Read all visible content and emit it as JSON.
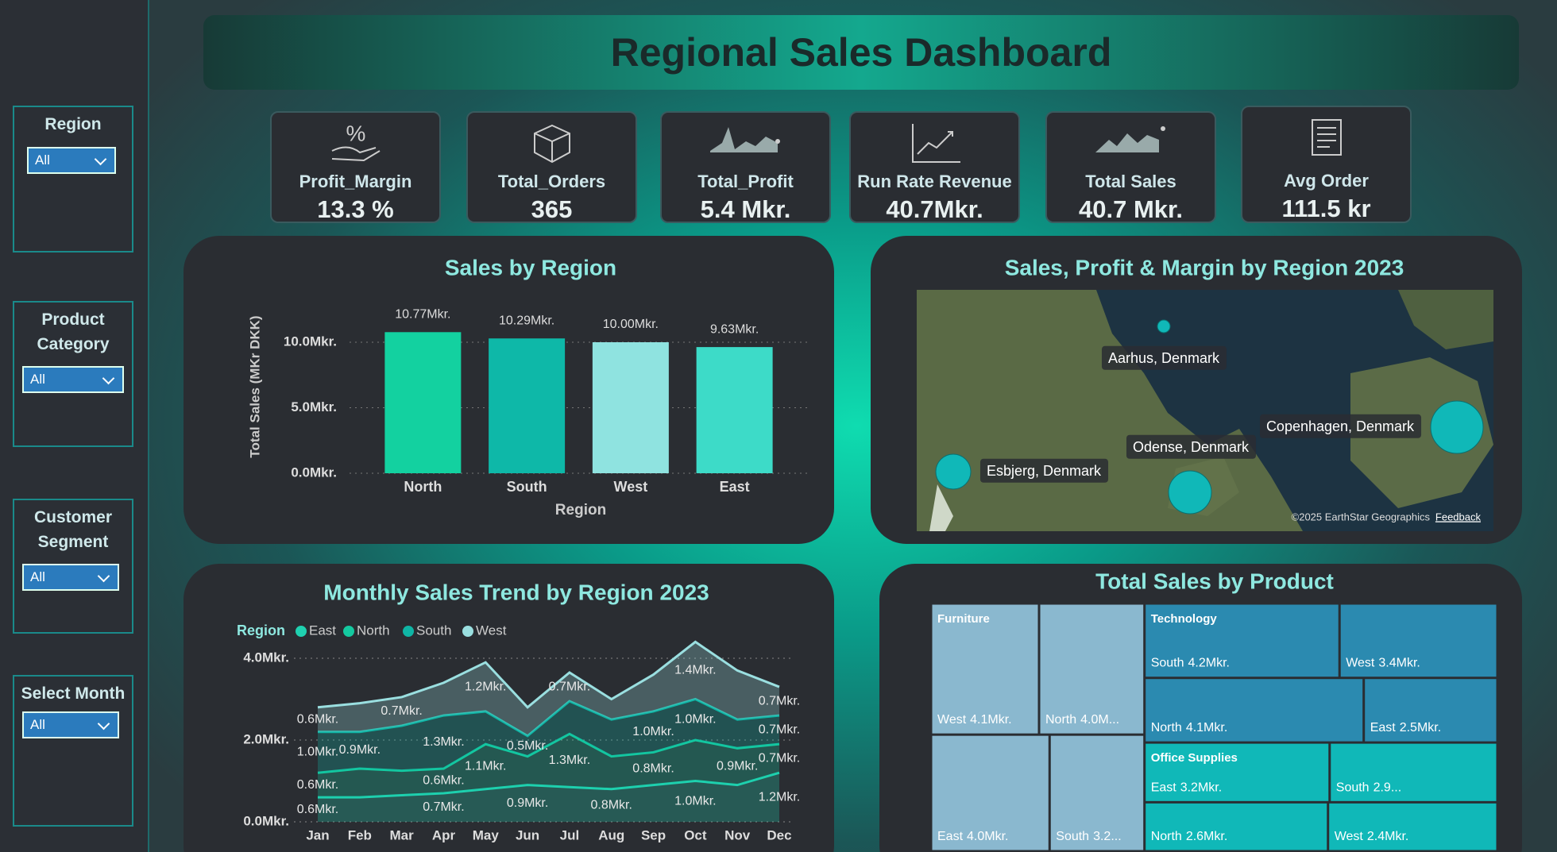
{
  "header": {
    "title": "Regional Sales Dashboard"
  },
  "slicers": [
    {
      "label": "Region",
      "selected": "All"
    },
    {
      "label": "Product Category",
      "selected": "All"
    },
    {
      "label": "Customer Segment",
      "selected": "All"
    },
    {
      "label": "Select Month",
      "selected": "All"
    }
  ],
  "kpis": [
    {
      "label": "Profit_Margin",
      "value": "13.3 %"
    },
    {
      "label": "Total_Orders",
      "value": "365"
    },
    {
      "label": "Total_Profit",
      "value": "5.4 Mkr."
    },
    {
      "label": "Run Rate Revenue",
      "value": "40.7Mkr."
    },
    {
      "label": "Total Sales",
      "value": "40.7 Mkr."
    },
    {
      "label": "Avg Order",
      "value": "111.5 kr"
    }
  ],
  "chart_data": [
    {
      "type": "bar",
      "title": "Sales by Region",
      "x_label": "Region",
      "y_label": "Total Sales (MKr DKK)",
      "categories": [
        "North",
        "South",
        "West",
        "East"
      ],
      "values": [
        10.77,
        10.29,
        10.0,
        9.63
      ],
      "value_labels": [
        "10.77Mkr.",
        "10.29Mkr.",
        "10.00Mkr.",
        "9.63Mkr."
      ],
      "colors": [
        "#13d1a0",
        "#0eb8a8",
        "#8fe3e0",
        "#3ddbc8"
      ],
      "ylim": [
        0,
        12
      ],
      "yticks": [
        {
          "value": 0,
          "label": "0.0Mkr."
        },
        {
          "value": 5,
          "label": "5.0Mkr."
        },
        {
          "value": 10,
          "label": "10.0Mkr."
        }
      ],
      "grid": true
    },
    {
      "type": "map",
      "title": "Sales, Profit & Margin by Region 2023",
      "locations": [
        "Aarhus, Denmark",
        "Copenhagen, Denmark",
        "Odense, Denmark",
        "Esbjerg, Denmark"
      ],
      "color": "#10b8b8",
      "attribution": "©2025 EarthStar Geographics",
      "feedback": "Feedback"
    },
    {
      "type": "area",
      "title": "Monthly Sales Trend by Region 2023",
      "legend_title": "Region",
      "categories": [
        "Jan",
        "Feb",
        "Mar",
        "Apr",
        "May",
        "Jun",
        "Jul",
        "Aug",
        "Sep",
        "Oct",
        "Nov",
        "Dec"
      ],
      "series": [
        {
          "name": "East",
          "color": "#1fd1b0",
          "values": [
            0.6,
            0.6,
            0.65,
            0.7,
            0.8,
            0.9,
            0.85,
            0.8,
            0.9,
            1.0,
            0.9,
            1.2
          ],
          "value_labels": [
            "0.6Mkr.",
            null,
            null,
            "0.7Mkr.",
            null,
            "0.9Mkr.",
            null,
            "0.8Mkr.",
            null,
            "1.0Mkr.",
            null,
            "1.2Mkr."
          ]
        },
        {
          "name": "North",
          "color": "#14c9a0",
          "values": [
            0.6,
            0.7,
            0.6,
            0.6,
            1.1,
            0.7,
            1.3,
            0.8,
            0.8,
            1.0,
            0.9,
            0.7
          ],
          "value_labels": [
            "0.6Mkr.",
            null,
            null,
            "0.6Mkr.",
            "1.1Mkr.",
            null,
            "1.3Mkr.",
            null,
            "0.8Mkr.",
            null,
            "0.9Mkr.",
            "0.7Mkr."
          ]
        },
        {
          "name": "South",
          "color": "#0fb5a5",
          "values": [
            1.0,
            0.9,
            1.1,
            1.3,
            0.8,
            0.5,
            0.8,
            0.9,
            1.0,
            1.0,
            0.7,
            0.7
          ],
          "value_labels": [
            "1.0Mkr.",
            "0.9Mkr.",
            null,
            "1.3Mkr.",
            null,
            "0.5Mkr.",
            null,
            null,
            "1.0Mkr.",
            "1.0Mkr.",
            null,
            "0.7Mkr."
          ]
        },
        {
          "name": "West",
          "color": "#9adfe0",
          "values": [
            0.6,
            0.7,
            0.7,
            0.8,
            1.2,
            0.7,
            0.7,
            0.5,
            0.9,
            1.4,
            1.2,
            0.7
          ],
          "value_labels": [
            "0.6Mkr.",
            null,
            "0.7Mkr.",
            null,
            "1.2Mkr.",
            null,
            "0.7Mkr.",
            null,
            null,
            "1.4Mkr.",
            null,
            "0.7Mkr."
          ]
        }
      ],
      "ylim": [
        0,
        4
      ],
      "yticks": [
        {
          "value": 0,
          "label": "0.0Mkr."
        },
        {
          "value": 2,
          "label": "2.0Mkr."
        },
        {
          "value": 4,
          "label": "4.0Mkr."
        }
      ],
      "grid": true
    },
    {
      "type": "treemap",
      "title": "Total Sales by Product",
      "groups": [
        {
          "name": "Furniture",
          "color": "#8ab8cf",
          "items": [
            {
              "name": "West",
              "value": 4.1,
              "value_label": "4.1Mkr."
            },
            {
              "name": "North",
              "value": 4.0,
              "value_label": "4.0M..."
            },
            {
              "name": "East",
              "value": 4.0,
              "value_label": "4.0Mkr."
            },
            {
              "name": "South",
              "value": 3.2,
              "value_label": "3.2..."
            }
          ]
        },
        {
          "name": "Technology",
          "color": "#2b8ab0",
          "items": [
            {
              "name": "South",
              "value": 4.2,
              "value_label": "4.2Mkr."
            },
            {
              "name": "West",
              "value": 3.4,
              "value_label": "3.4Mkr."
            },
            {
              "name": "North",
              "value": 4.1,
              "value_label": "4.1Mkr."
            },
            {
              "name": "East",
              "value": 2.5,
              "value_label": "2.5Mkr."
            }
          ]
        },
        {
          "name": "Office Supplies",
          "color": "#10b8b8",
          "items": [
            {
              "name": "East",
              "value": 3.2,
              "value_label": "3.2Mkr."
            },
            {
              "name": "South",
              "value": 2.9,
              "value_label": "2.9..."
            },
            {
              "name": "North",
              "value": 2.6,
              "value_label": "2.6Mkr."
            },
            {
              "name": "West",
              "value": 2.4,
              "value_label": "2.4Mkr."
            }
          ]
        }
      ]
    }
  ]
}
